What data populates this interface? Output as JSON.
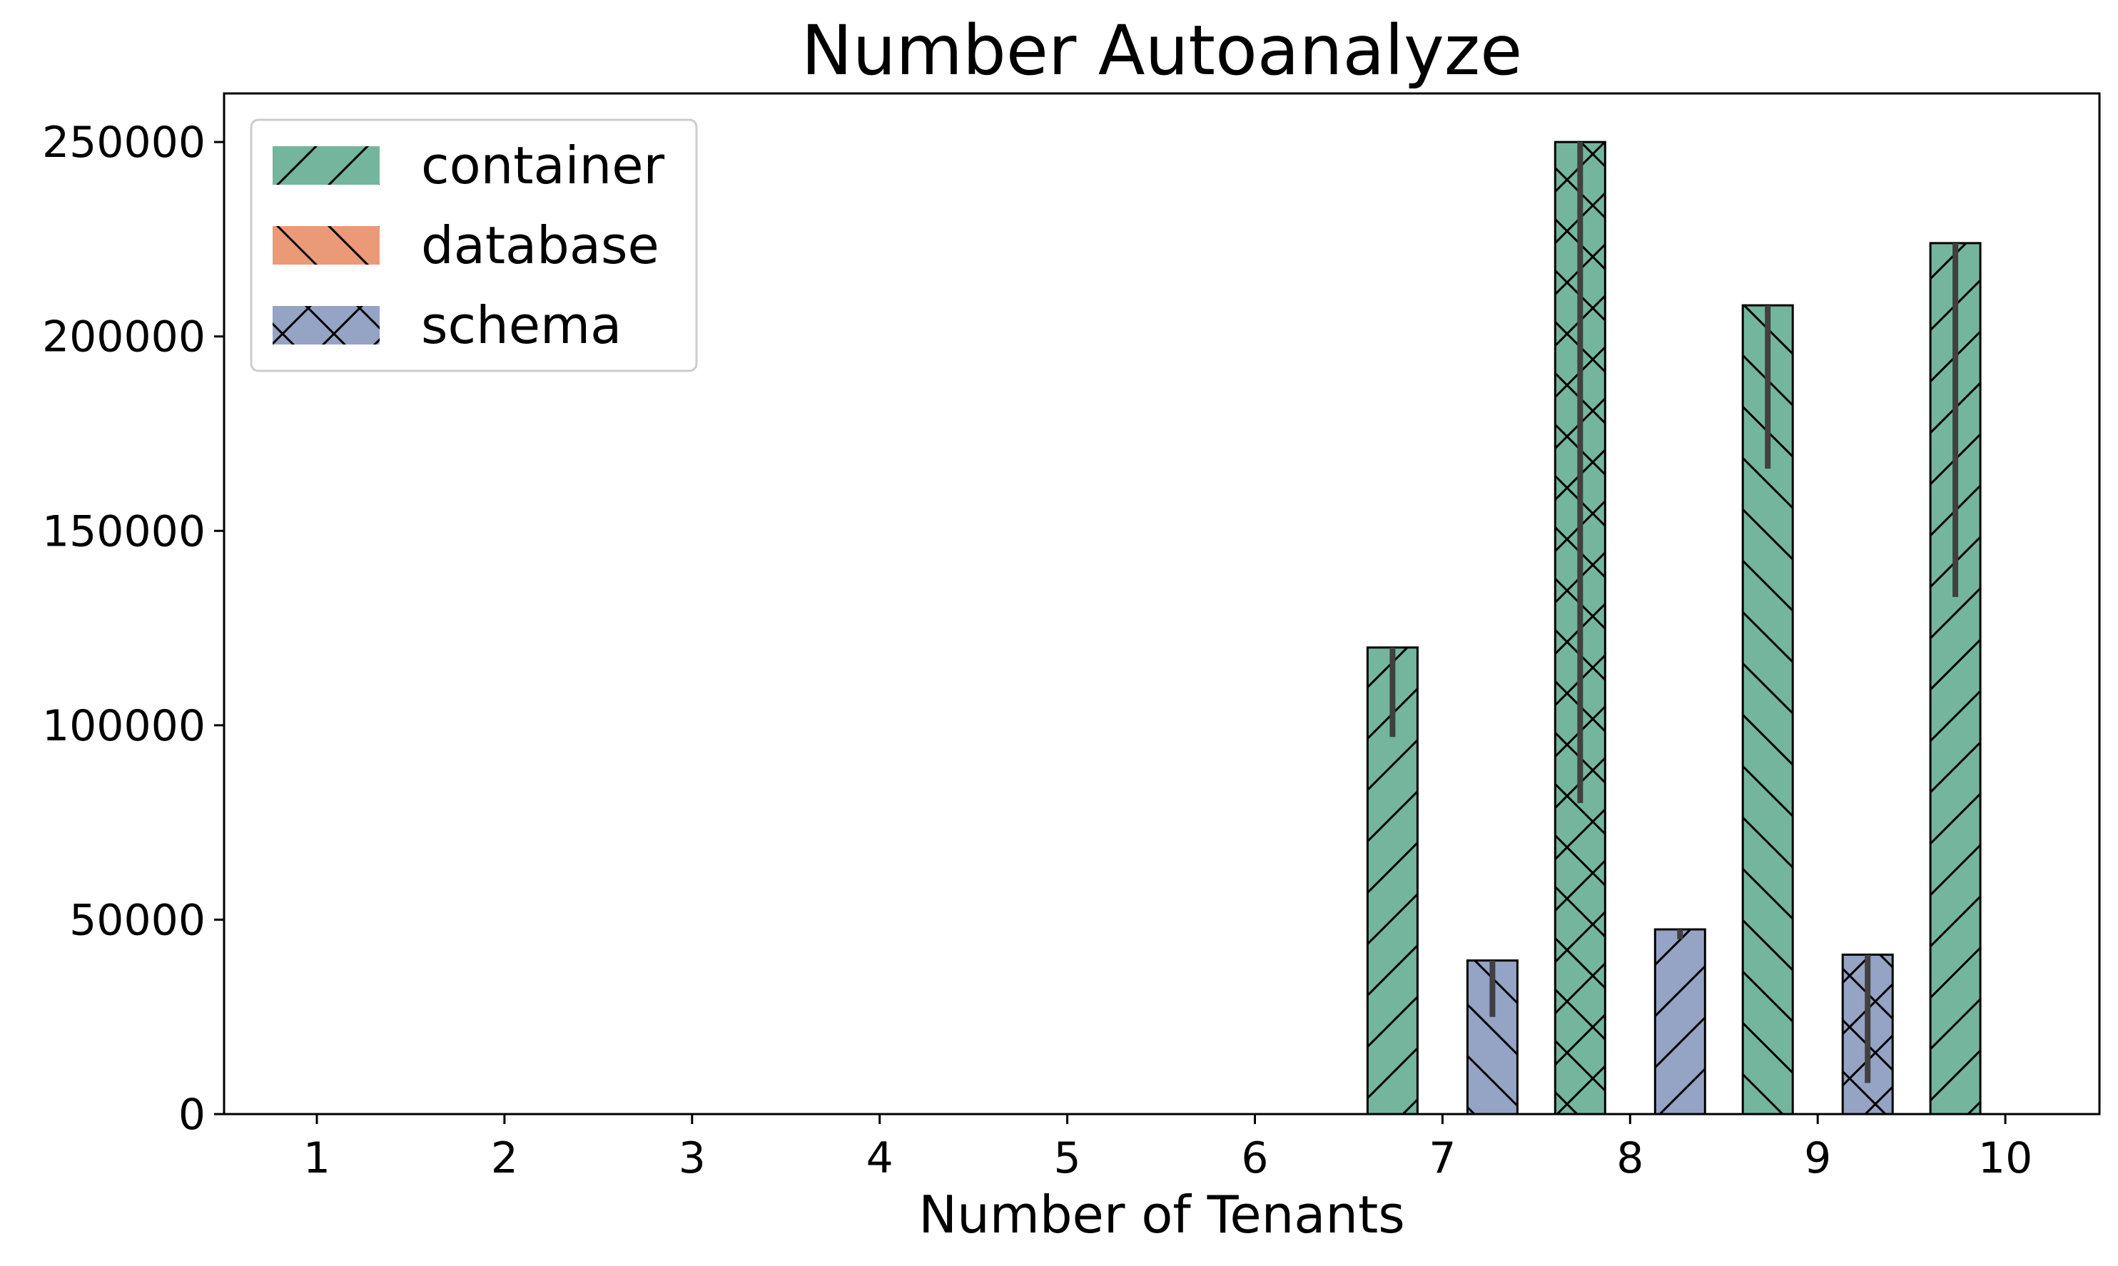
{
  "chart_data": {
    "type": "bar",
    "title": "Number Autoanalyze",
    "xlabel": "Number of Tenants",
    "ylabel": "",
    "categories": [
      "1",
      "2",
      "3",
      "4",
      "5",
      "6",
      "7",
      "8",
      "9",
      "10"
    ],
    "ylim": [
      0,
      262500
    ],
    "yticks": [
      0,
      50000,
      100000,
      150000,
      200000,
      250000
    ],
    "ytick_labels": [
      "0",
      "50000",
      "100000",
      "150000",
      "200000",
      "250000"
    ],
    "grid": false,
    "legend_position": "top-left",
    "series": [
      {
        "name": "container",
        "color": "#74b69d",
        "values": [
          0,
          0,
          0,
          0,
          0,
          0,
          120000,
          250000,
          208000,
          224000
        ],
        "error_low": [
          0,
          0,
          0,
          0,
          0,
          0,
          97000,
          80000,
          166000,
          133000
        ],
        "error_high": [
          0,
          0,
          0,
          0,
          0,
          0,
          120000,
          250000,
          208000,
          224000
        ]
      },
      {
        "name": "database",
        "color": "#eb9a78",
        "values": [
          0,
          0,
          0,
          0,
          0,
          0,
          0,
          0,
          0,
          0
        ],
        "error_low": [
          0,
          0,
          0,
          0,
          0,
          0,
          0,
          0,
          0,
          0
        ],
        "error_high": [
          0,
          0,
          0,
          0,
          0,
          0,
          0,
          0,
          0,
          0
        ]
      },
      {
        "name": "schema",
        "color": "#95a3c4",
        "values": [
          0,
          0,
          0,
          0,
          0,
          0,
          39500,
          47500,
          41000,
          0
        ],
        "error_low": [
          0,
          0,
          0,
          0,
          0,
          0,
          25000,
          45000,
          8000,
          0
        ],
        "error_high": [
          0,
          0,
          0,
          0,
          0,
          0,
          39500,
          47500,
          41000,
          0
        ]
      }
    ]
  }
}
